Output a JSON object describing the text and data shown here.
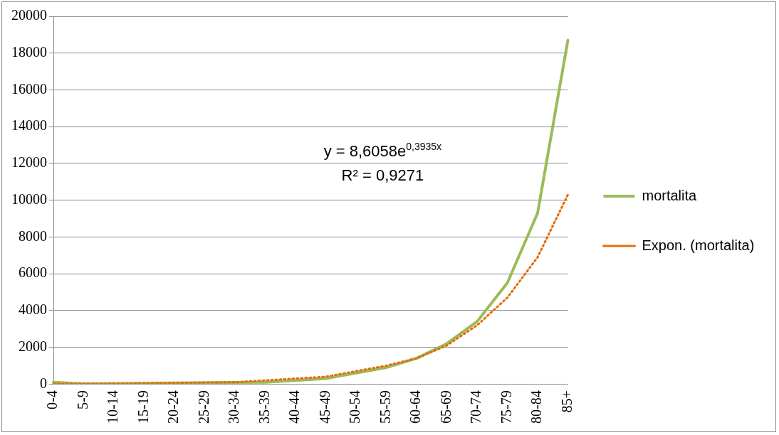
{
  "chart_data": {
    "type": "line",
    "categories": [
      "0-4",
      "5-9",
      "10-14",
      "15-19",
      "20-24",
      "25-29",
      "30-34",
      "35-39",
      "40-44",
      "45-49",
      "50-54",
      "55-59",
      "60-64",
      "65-69",
      "70-74",
      "75-79",
      "80-84",
      "85+"
    ],
    "series": [
      {
        "name": "mortalita",
        "color": "#9bbb59",
        "values": [
          100,
          10,
          20,
          40,
          60,
          70,
          90,
          100,
          200,
          300,
          600,
          900,
          1400,
          2200,
          3400,
          5500,
          9300,
          18700
        ]
      },
      {
        "name": "Expon. (mortalita)",
        "color": "#e46c0a",
        "line_style": "dotted",
        "values": [
          10,
          20,
          30,
          40,
          60,
          90,
          100,
          200,
          300,
          400,
          700,
          1000,
          1400,
          2100,
          3200,
          4700,
          6900,
          10300
        ]
      }
    ],
    "ylim": [
      0,
      20000
    ],
    "yticks": [
      0,
      2000,
      4000,
      6000,
      8000,
      10000,
      12000,
      14000,
      16000,
      18000,
      20000
    ],
    "grid": "y",
    "legend": "right",
    "marker": "none",
    "line_style": "solid",
    "annotations": [
      "y = 8,6058e$^{0,3935x}$",
      "R² = 0,9271"
    ]
  }
}
